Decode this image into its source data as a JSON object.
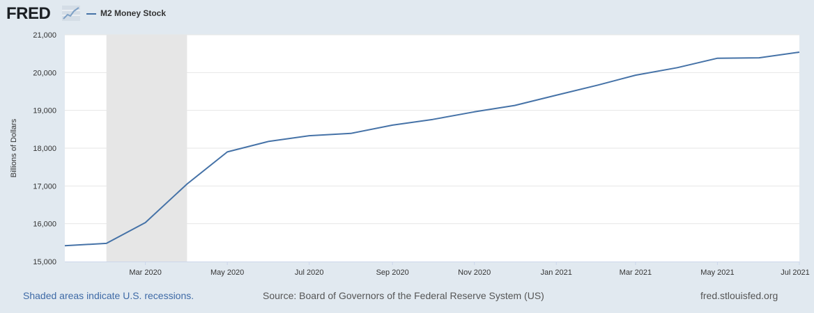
{
  "header": {
    "logo_text": "FRED",
    "logo_icon": "trend-graph-icon",
    "legend_label": "M2 Money Stock"
  },
  "colors": {
    "background": "#e1e9f0",
    "plot_background": "#ffffff",
    "series": "#4572a7",
    "recession_shade": "#e6e6e6",
    "grid": "#e6e6e6",
    "link": "#3e6aa6"
  },
  "footer": {
    "recession_note": "Shaded areas indicate U.S. recessions.",
    "source": "Source: Board of Governors of the Federal Reserve System (US)",
    "site": "fred.stlouisfed.org"
  },
  "chart_data": {
    "type": "line",
    "title": "",
    "xlabel": "",
    "ylabel": "Billions of Dollars",
    "ylim": [
      15000,
      21000
    ],
    "yticks": [
      15000,
      16000,
      17000,
      18000,
      19000,
      20000,
      21000
    ],
    "ytick_labels": [
      "15,000",
      "16,000",
      "17,000",
      "18,000",
      "19,000",
      "20,000",
      "21,000"
    ],
    "xlim": [
      "2020-01-01",
      "2021-07-01"
    ],
    "xticks": [
      "2020-03-01",
      "2020-05-01",
      "2020-07-01",
      "2020-09-01",
      "2020-11-01",
      "2021-01-01",
      "2021-03-01",
      "2021-05-01",
      "2021-07-01"
    ],
    "xtick_labels": [
      "Mar 2020",
      "May 2020",
      "Jul 2020",
      "Sep 2020",
      "Nov 2020",
      "Jan 2021",
      "Mar 2021",
      "May 2021",
      "Jul 2021"
    ],
    "grid": "horizontal",
    "legend": "top-left",
    "recession": {
      "start": "2020-02-01",
      "end": "2020-04-01"
    },
    "series": [
      {
        "name": "M2 Money Stock",
        "x": [
          "2020-01-01",
          "2020-02-01",
          "2020-03-01",
          "2020-04-01",
          "2020-05-01",
          "2020-06-01",
          "2020-07-01",
          "2020-08-01",
          "2020-09-01",
          "2020-10-01",
          "2020-11-01",
          "2020-12-01",
          "2021-01-01",
          "2021-02-01",
          "2021-03-01",
          "2021-04-01",
          "2021-05-01",
          "2021-06-01",
          "2021-07-01"
        ],
        "values": [
          15420,
          15480,
          16030,
          17050,
          17900,
          18180,
          18330,
          18390,
          18610,
          18760,
          18960,
          19130,
          19400,
          19670,
          19930,
          20130,
          20380,
          20390,
          20540
        ]
      }
    ]
  }
}
